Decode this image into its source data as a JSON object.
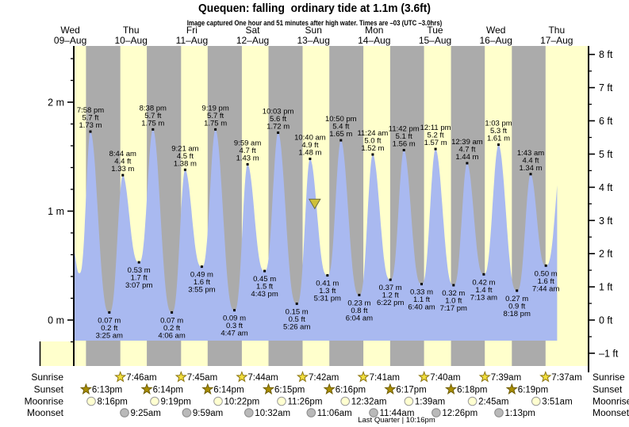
{
  "title": "Quequen: falling  ordinary tide at 1.1m (3.6ft)",
  "subtitle": "Image captured One hour and 51 minutes after high water. Times are –03 (UTC –3.0hrs)",
  "days": [
    {
      "weekday": "Wed",
      "date": "09–Aug",
      "noon_t": 12
    },
    {
      "weekday": "Thu",
      "date": "10–Aug",
      "noon_t": 36
    },
    {
      "weekday": "Fri",
      "date": "11–Aug",
      "noon_t": 60
    },
    {
      "weekday": "Sat",
      "date": "12–Aug",
      "noon_t": 84
    },
    {
      "weekday": "Sun",
      "date": "13–Aug",
      "noon_t": 108
    },
    {
      "weekday": "Mon",
      "date": "14–Aug",
      "noon_t": 132
    },
    {
      "weekday": "Tue",
      "date": "15–Aug",
      "noon_t": 156
    },
    {
      "weekday": "Wed",
      "date": "16–Aug",
      "noon_t": 180
    },
    {
      "weekday": "Thu",
      "date": "17–Aug",
      "noon_t": 204
    }
  ],
  "axes": {
    "left_ticks": [
      {
        "label": "0 m",
        "v": 0
      },
      {
        "label": "1 m",
        "v": 1
      },
      {
        "label": "2 m",
        "v": 2
      }
    ],
    "right_ticks": [
      {
        "label": "–1 ft",
        "v": -1
      },
      {
        "label": "0 ft",
        "v": 0
      },
      {
        "label": "1 ft",
        "v": 1
      },
      {
        "label": "2 ft",
        "v": 2
      },
      {
        "label": "3 ft",
        "v": 3
      },
      {
        "label": "4 ft",
        "v": 4
      },
      {
        "label": "5 ft",
        "v": 5
      },
      {
        "label": "6 ft",
        "v": 6
      },
      {
        "label": "7 ft",
        "v": 7
      },
      {
        "label": "8 ft",
        "v": 8
      }
    ]
  },
  "chart_data": {
    "type": "area",
    "x_unit": "hours since 00:00 on Wed 09-Aug (local, UTC-3)",
    "y_unit": "metres",
    "y_range_m": [
      -0.25,
      2.5
    ],
    "tide_events": [
      {
        "t": 19.967,
        "type": "high",
        "time": "7:58 pm",
        "ft": "5.7 ft",
        "m": "1.73 m"
      },
      {
        "t": 27.417,
        "type": "low",
        "time": "3:25 am",
        "ft": "0.2 ft",
        "m": "0.07 m"
      },
      {
        "t": 32.733,
        "type": "high",
        "time": "8:44 am",
        "ft": "4.4 ft",
        "m": "1.33 m"
      },
      {
        "t": 39.117,
        "type": "low",
        "time": "3:07 pm",
        "ft": "1.7 ft",
        "m": "0.53 m"
      },
      {
        "t": 44.633,
        "type": "high",
        "time": "8:38 pm",
        "ft": "5.7 ft",
        "m": "1.75 m"
      },
      {
        "t": 52.1,
        "type": "low",
        "time": "4:06 am",
        "ft": "0.2 ft",
        "m": "0.07 m"
      },
      {
        "t": 57.35,
        "type": "high",
        "time": "9:21 am",
        "ft": "4.5 ft",
        "m": "1.38 m"
      },
      {
        "t": 63.917,
        "type": "low",
        "time": "3:55 pm",
        "ft": "1.6 ft",
        "m": "0.49 m"
      },
      {
        "t": 69.317,
        "type": "high",
        "time": "9:19 pm",
        "ft": "5.7 ft",
        "m": "1.75 m"
      },
      {
        "t": 76.783,
        "type": "low",
        "time": "4:47 am",
        "ft": "0.3 ft",
        "m": "0.09 m"
      },
      {
        "t": 81.983,
        "type": "high",
        "time": "9:59 am",
        "ft": "4.7 ft",
        "m": "1.43 m"
      },
      {
        "t": 88.717,
        "type": "low",
        "time": "4:43 pm",
        "ft": "1.5 ft",
        "m": "0.45 m"
      },
      {
        "t": 94.05,
        "type": "high",
        "time": "10:03 pm",
        "ft": "5.6 ft",
        "m": "1.72 m"
      },
      {
        "t": 101.433,
        "type": "low",
        "time": "5:26 am",
        "ft": "0.5 ft",
        "m": "0.15 m"
      },
      {
        "t": 106.667,
        "type": "high",
        "time": "10:40 am",
        "ft": "4.9 ft",
        "m": "1.48 m"
      },
      {
        "t": 113.517,
        "type": "low",
        "time": "5:31 pm",
        "ft": "1.3 ft",
        "m": "0.41 m"
      },
      {
        "t": 118.833,
        "type": "high",
        "time": "10:50 pm",
        "ft": "5.4 ft",
        "m": "1.65 m"
      },
      {
        "t": 126.067,
        "type": "low",
        "time": "6:04 am",
        "ft": "0.8 ft",
        "m": "0.23 m"
      },
      {
        "t": 131.4,
        "type": "high",
        "time": "11:24 am",
        "ft": "5.0 ft",
        "m": "1.52 m"
      },
      {
        "t": 138.367,
        "type": "low",
        "time": "6:22 pm",
        "ft": "1.2 ft",
        "m": "0.37 m"
      },
      {
        "t": 143.7,
        "type": "high",
        "time": "11:42 pm",
        "ft": "5.1 ft",
        "m": "1.56 m"
      },
      {
        "t": 150.667,
        "type": "low",
        "time": "6:40 am",
        "ft": "1.1 ft",
        "m": "0.33 m"
      },
      {
        "t": 156.183,
        "type": "high",
        "time": "12:11 pm",
        "ft": "5.2 ft",
        "m": "1.57 m"
      },
      {
        "t": 163.283,
        "type": "low",
        "time": "7:17 pm",
        "ft": "1.0 ft",
        "m": "0.32 m"
      },
      {
        "t": 168.65,
        "type": "high",
        "time": "12:39 am",
        "ft": "4.7 ft",
        "m": "1.44 m"
      },
      {
        "t": 175.217,
        "type": "low",
        "time": "7:13 am",
        "ft": "1.4 ft",
        "m": "0.42 m"
      },
      {
        "t": 181.05,
        "type": "high",
        "time": "1:03 pm",
        "ft": "5.3 ft",
        "m": "1.61 m"
      },
      {
        "t": 188.3,
        "type": "low",
        "time": "8:18 pm",
        "ft": "0.9 ft",
        "m": "0.27 m"
      },
      {
        "t": 193.717,
        "type": "high",
        "time": "1:43 am",
        "ft": "4.4 ft",
        "m": "1.34 m"
      },
      {
        "t": 199.733,
        "type": "low",
        "time": "7:44 am",
        "ft": "1.6 ft",
        "m": "0.50 m"
      }
    ],
    "curve_edges": {
      "start": {
        "t": 13.39,
        "v": 0.63
      },
      "unlabeled_low": {
        "t": 15.6,
        "v": 0.43
      },
      "end_high": {
        "t": 206.4,
        "v": 1.62
      },
      "cut_t": 204.4
    },
    "current_level_marker": {
      "t": 108.5,
      "m": 1.07
    }
  },
  "astro": {
    "rows": [
      {
        "label": "Sunrise",
        "icon": "sunrise-star",
        "events": [
          {
            "time": "7:46am",
            "t": 31.767
          },
          {
            "time": "7:45am",
            "t": 55.75
          },
          {
            "time": "7:44am",
            "t": 79.733
          },
          {
            "time": "7:42am",
            "t": 103.7
          },
          {
            "time": "7:41am",
            "t": 127.683
          },
          {
            "time": "7:40am",
            "t": 151.667
          },
          {
            "time": "7:39am",
            "t": 175.65
          },
          {
            "time": "7:37am",
            "t": 199.617
          }
        ]
      },
      {
        "label": "Sunset",
        "icon": "sunset-star",
        "events": [
          {
            "time": "6:13pm",
            "t": 18.217
          },
          {
            "time": "6:14pm",
            "t": 42.233
          },
          {
            "time": "6:14pm",
            "t": 66.233
          },
          {
            "time": "6:15pm",
            "t": 90.25
          },
          {
            "time": "6:16pm",
            "t": 114.267
          },
          {
            "time": "6:17pm",
            "t": 138.283
          },
          {
            "time": "6:18pm",
            "t": 162.3
          },
          {
            "time": "6:19pm",
            "t": 186.317
          }
        ]
      },
      {
        "label": "Moonrise",
        "icon": "moonrise-circle",
        "events": [
          {
            "time": "8:16pm",
            "t": 20.267
          },
          {
            "time": "9:19pm",
            "t": 45.317
          },
          {
            "time": "10:22pm",
            "t": 70.367
          },
          {
            "time": "11:26pm",
            "t": 95.433
          },
          {
            "time": "12:32am",
            "t": 120.533
          },
          {
            "time": "1:39am",
            "t": 145.65
          },
          {
            "time": "2:45am",
            "t": 170.75
          },
          {
            "time": "3:51am",
            "t": 195.85
          }
        ]
      },
      {
        "label": "Moonset",
        "icon": "moonset-circle",
        "events": [
          {
            "time": "9:25am",
            "t": 33.417
          },
          {
            "time": "9:59am",
            "t": 57.983
          },
          {
            "time": "10:32am",
            "t": 82.533
          },
          {
            "time": "11:06am",
            "t": 107.1
          },
          {
            "time": "11:44am",
            "t": 131.733
          },
          {
            "time": "12:26pm",
            "t": 156.433
          },
          {
            "time": "1:13pm",
            "t": 181.217
          }
        ]
      }
    ],
    "moon_phase": "Last Quarter | 10:16pm"
  },
  "colors": {
    "day_band": "#ffffcc",
    "night_band": "#ababab",
    "tide_area": "#a9b9f0",
    "day_label": "#e53535",
    "axis": "#000000",
    "sunrise_star_fill": "#f2df3d",
    "sunrise_star_stroke": "#8b7510",
    "sunset_star_fill": "#a98e00",
    "sunset_star_stroke": "#6e5c00",
    "moonrise_fill": "#ffffd0",
    "moonrise_stroke": "#9a9a9a",
    "moonset_fill": "#b9b9b9",
    "moonset_stroke": "#8a8a8a",
    "marker_fill": "#cfc139",
    "marker_stroke": "#6e6e3e"
  }
}
